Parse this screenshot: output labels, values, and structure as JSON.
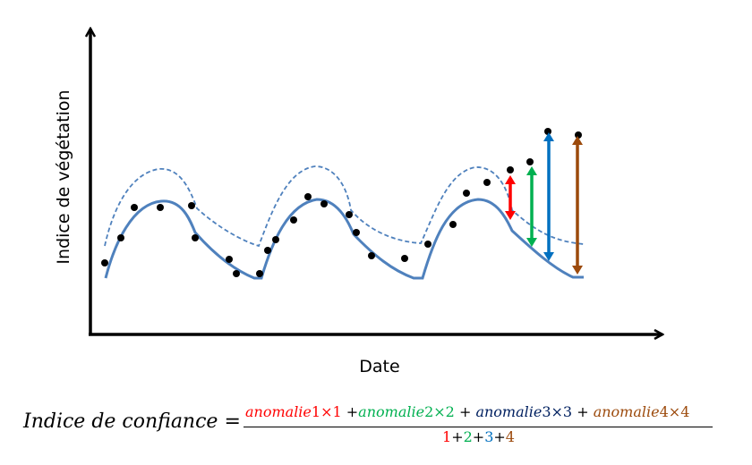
{
  "diagram": {
    "ylabel": "Indice de végétation",
    "xlabel": "Date",
    "colors": {
      "curve": "#4f81bd",
      "points": "#000000",
      "axis": "#000000",
      "anomaly1": "#ff0000",
      "anomaly2": "#00b050",
      "anomaly3": "#0070c0",
      "anomaly4": "#9c4a0c"
    }
  },
  "formula": {
    "lhs": "Indice de confiance",
    "equals": "=",
    "terms": [
      {
        "word": "anomalie",
        "index": "1",
        "times": "×",
        "weight": "1"
      },
      {
        "word": "anomalie",
        "index": "2",
        "times": "×",
        "weight": "2"
      },
      {
        "word": "anomalie",
        "index": "3",
        "times": "×",
        "weight": "3"
      },
      {
        "word": "anomalie",
        "index": "4",
        "times": "×",
        "weight": "4"
      }
    ],
    "plus": "+",
    "denominator": [
      "1",
      "2",
      "3",
      "4"
    ]
  }
}
